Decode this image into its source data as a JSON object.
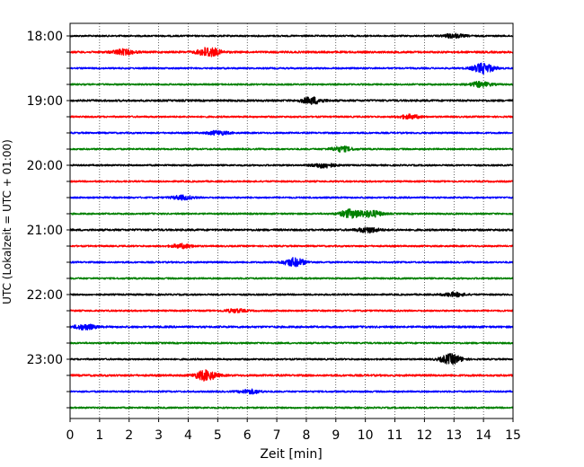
{
  "chart_data": {
    "type": "line",
    "title": "",
    "xlabel": "Zeit  [min]",
    "ylabel": "UTC (Lokalzeit = UTC + 01:00)",
    "xlim": [
      0,
      15
    ],
    "x_ticks": [
      0,
      1,
      2,
      3,
      4,
      5,
      6,
      7,
      8,
      9,
      10,
      11,
      12,
      13,
      14,
      15
    ],
    "x_tick_labels": [
      "0",
      "1",
      "2",
      "3",
      "4",
      "5",
      "6",
      "7",
      "8",
      "9",
      "10",
      "11",
      "12",
      "13",
      "14",
      "15"
    ],
    "y_tick_labels": [
      "18:00",
      "19:00",
      "20:00",
      "21:00",
      "22:00",
      "23:00"
    ],
    "grid": "vertical dotted at every minute",
    "trace_interval_minutes": 15,
    "start_time": "18:00",
    "color_cycle": [
      "#000000",
      "#ff0000",
      "#0000ff",
      "#008000"
    ],
    "series": [
      {
        "start": "18:00",
        "color": "#000000",
        "amplitude": 0.05,
        "events": [
          {
            "t": 13.0,
            "amp": 0.12
          }
        ]
      },
      {
        "start": "18:15",
        "color": "#ff0000",
        "amplitude": 0.06,
        "events": [
          {
            "t": 1.8,
            "amp": 0.15
          },
          {
            "t": 4.7,
            "amp": 0.3
          }
        ]
      },
      {
        "start": "18:30",
        "color": "#0000ff",
        "amplitude": 0.05,
        "events": [
          {
            "t": 14.0,
            "amp": 0.3
          }
        ]
      },
      {
        "start": "18:45",
        "color": "#008000",
        "amplitude": 0.05,
        "events": [
          {
            "t": 13.9,
            "amp": 0.15
          }
        ]
      },
      {
        "start": "19:00",
        "color": "#000000",
        "amplitude": 0.06,
        "events": [
          {
            "t": 8.2,
            "amp": 0.2
          }
        ]
      },
      {
        "start": "19:15",
        "color": "#ff0000",
        "amplitude": 0.05,
        "events": [
          {
            "t": 11.5,
            "amp": 0.12
          }
        ]
      },
      {
        "start": "19:30",
        "color": "#0000ff",
        "amplitude": 0.05,
        "events": [
          {
            "t": 5.0,
            "amp": 0.12
          }
        ]
      },
      {
        "start": "19:45",
        "color": "#008000",
        "amplitude": 0.05,
        "events": [
          {
            "t": 9.2,
            "amp": 0.15
          }
        ]
      },
      {
        "start": "20:00",
        "color": "#000000",
        "amplitude": 0.05,
        "events": [
          {
            "t": 8.6,
            "amp": 0.15
          }
        ]
      },
      {
        "start": "20:15",
        "color": "#ff0000",
        "amplitude": 0.05,
        "events": []
      },
      {
        "start": "20:30",
        "color": "#0000ff",
        "amplitude": 0.05,
        "events": [
          {
            "t": 3.8,
            "amp": 0.12
          }
        ]
      },
      {
        "start": "20:45",
        "color": "#008000",
        "amplitude": 0.05,
        "events": [
          {
            "t": 9.5,
            "amp": 0.25
          },
          {
            "t": 10.2,
            "amp": 0.2
          }
        ]
      },
      {
        "start": "21:00",
        "color": "#000000",
        "amplitude": 0.06,
        "events": [
          {
            "t": 10.1,
            "amp": 0.15
          }
        ]
      },
      {
        "start": "21:15",
        "color": "#ff0000",
        "amplitude": 0.05,
        "events": [
          {
            "t": 3.8,
            "amp": 0.12
          }
        ]
      },
      {
        "start": "21:30",
        "color": "#0000ff",
        "amplitude": 0.05,
        "events": [
          {
            "t": 7.6,
            "amp": 0.25
          }
        ]
      },
      {
        "start": "21:45",
        "color": "#008000",
        "amplitude": 0.05,
        "events": []
      },
      {
        "start": "22:00",
        "color": "#000000",
        "amplitude": 0.05,
        "events": [
          {
            "t": 13.0,
            "amp": 0.12
          }
        ]
      },
      {
        "start": "22:15",
        "color": "#ff0000",
        "amplitude": 0.05,
        "events": [
          {
            "t": 5.6,
            "amp": 0.1
          }
        ]
      },
      {
        "start": "22:30",
        "color": "#0000ff",
        "amplitude": 0.06,
        "events": [
          {
            "t": 0.5,
            "amp": 0.15
          }
        ]
      },
      {
        "start": "22:45",
        "color": "#008000",
        "amplitude": 0.05,
        "events": []
      },
      {
        "start": "23:00",
        "color": "#000000",
        "amplitude": 0.05,
        "events": [
          {
            "t": 12.9,
            "amp": 0.3
          }
        ]
      },
      {
        "start": "23:15",
        "color": "#ff0000",
        "amplitude": 0.06,
        "events": [
          {
            "t": 4.6,
            "amp": 0.3
          }
        ]
      },
      {
        "start": "23:30",
        "color": "#0000ff",
        "amplitude": 0.05,
        "events": [
          {
            "t": 6.1,
            "amp": 0.12
          }
        ]
      },
      {
        "start": "23:45",
        "color": "#008000",
        "amplitude": 0.05,
        "events": []
      }
    ]
  }
}
